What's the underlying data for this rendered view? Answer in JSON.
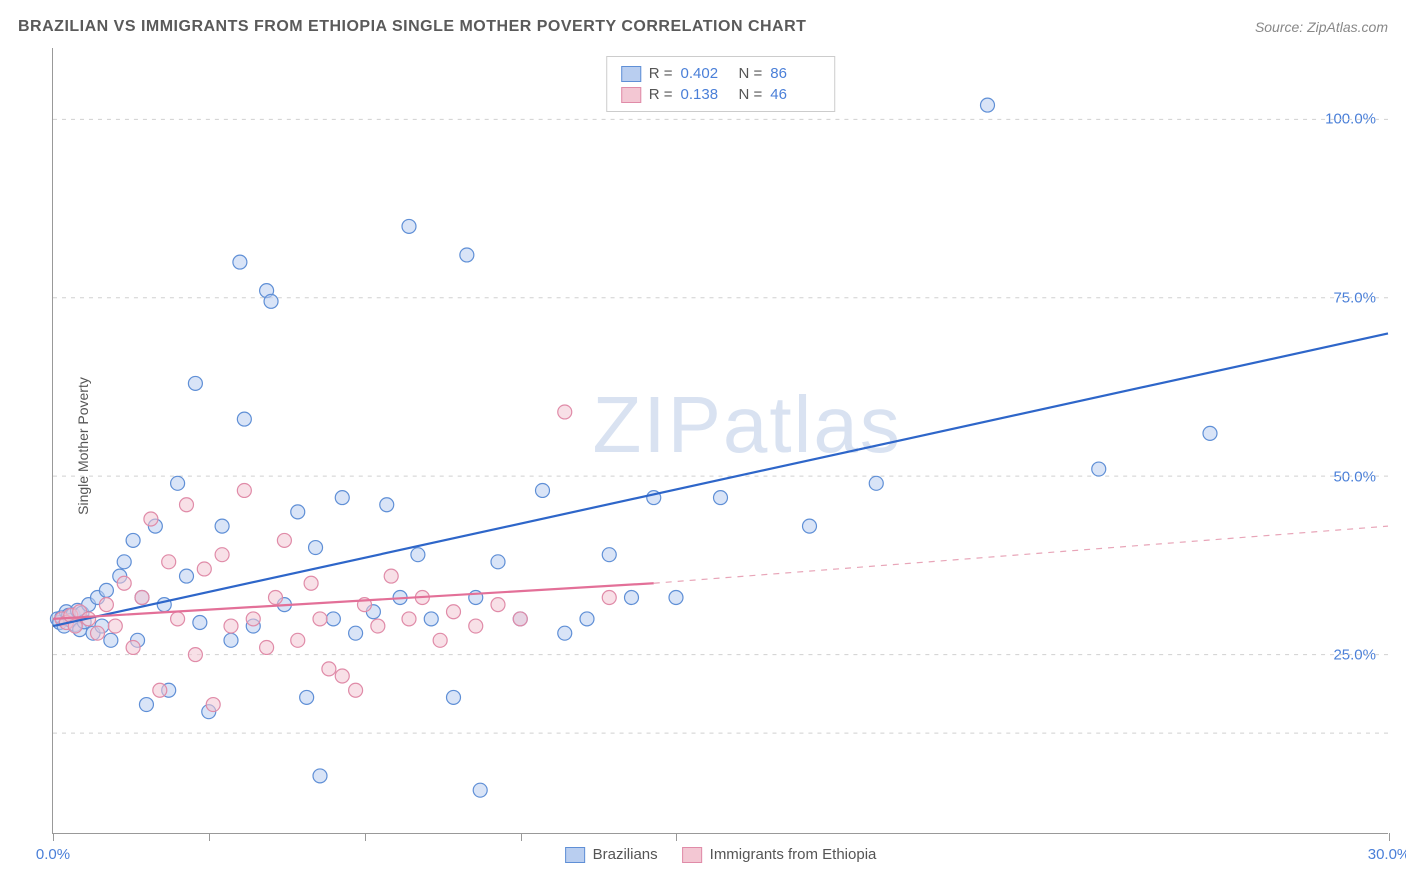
{
  "title": "BRAZILIAN VS IMMIGRANTS FROM ETHIOPIA SINGLE MOTHER POVERTY CORRELATION CHART",
  "source": "Source: ZipAtlas.com",
  "y_axis_label": "Single Mother Poverty",
  "watermark_bold": "ZIP",
  "watermark_light": "atlas",
  "chart": {
    "type": "scatter",
    "xlim": [
      0,
      30
    ],
    "ylim": [
      0,
      110
    ],
    "x_ticks": [
      0,
      3.5,
      7,
      10.5,
      14,
      30
    ],
    "x_tick_labels": {
      "0": "0.0%",
      "30": "30.0%"
    },
    "y_gridlines": [
      14,
      25,
      50,
      75,
      100
    ],
    "y_tick_labels": {
      "25": "25.0%",
      "50": "50.0%",
      "75": "75.0%",
      "100": "100.0%"
    },
    "background_color": "#ffffff",
    "grid_color": "#d0d0d0",
    "axis_color": "#999999",
    "tick_label_color": "#4a7fd8",
    "marker_radius": 7,
    "marker_stroke_width": 1.2,
    "series": [
      {
        "name": "Brazilians",
        "color_fill": "#b9cef0",
        "color_stroke": "#5f8fd6",
        "fill_opacity": 0.55,
        "R": "0.402",
        "N": "86",
        "trend_line": {
          "x1": 0,
          "y1": 29,
          "x2": 30,
          "y2": 70,
          "color": "#2e66c9",
          "width": 2.2,
          "dash": "none"
        },
        "points": [
          [
            0.1,
            30
          ],
          [
            0.15,
            29.5
          ],
          [
            0.2,
            30.2
          ],
          [
            0.25,
            29
          ],
          [
            0.3,
            31
          ],
          [
            0.35,
            30.5
          ],
          [
            0.4,
            29.8
          ],
          [
            0.45,
            30.6
          ],
          [
            0.5,
            29.2
          ],
          [
            0.55,
            31.2
          ],
          [
            0.6,
            28.5
          ],
          [
            0.65,
            30.8
          ],
          [
            0.7,
            29.6
          ],
          [
            0.8,
            32
          ],
          [
            0.9,
            28
          ],
          [
            1.0,
            33
          ],
          [
            1.1,
            29
          ],
          [
            1.2,
            34
          ],
          [
            1.3,
            27
          ],
          [
            1.5,
            36
          ],
          [
            1.6,
            38
          ],
          [
            1.8,
            41
          ],
          [
            1.9,
            27
          ],
          [
            2.0,
            33
          ],
          [
            2.1,
            18
          ],
          [
            2.3,
            43
          ],
          [
            2.5,
            32
          ],
          [
            2.6,
            20
          ],
          [
            2.8,
            49
          ],
          [
            3.0,
            36
          ],
          [
            3.2,
            63
          ],
          [
            3.3,
            29.5
          ],
          [
            3.5,
            17
          ],
          [
            3.8,
            43
          ],
          [
            4.0,
            27
          ],
          [
            4.2,
            80
          ],
          [
            4.3,
            58
          ],
          [
            4.5,
            29
          ],
          [
            4.8,
            76
          ],
          [
            4.9,
            74.5
          ],
          [
            5.2,
            32
          ],
          [
            5.5,
            45
          ],
          [
            5.7,
            19
          ],
          [
            5.9,
            40
          ],
          [
            6.0,
            8
          ],
          [
            6.3,
            30
          ],
          [
            6.5,
            47
          ],
          [
            6.8,
            28
          ],
          [
            7.2,
            31
          ],
          [
            7.5,
            46
          ],
          [
            7.8,
            33
          ],
          [
            8.0,
            85
          ],
          [
            8.2,
            39
          ],
          [
            8.5,
            30
          ],
          [
            9.0,
            19
          ],
          [
            9.3,
            81
          ],
          [
            9.5,
            33
          ],
          [
            9.6,
            6
          ],
          [
            10.0,
            38
          ],
          [
            10.5,
            30
          ],
          [
            11.0,
            48
          ],
          [
            11.5,
            28
          ],
          [
            12.0,
            30
          ],
          [
            12.5,
            39
          ],
          [
            13.0,
            33
          ],
          [
            13.5,
            47
          ],
          [
            14.0,
            33
          ],
          [
            15.0,
            47
          ],
          [
            17.0,
            43
          ],
          [
            18.5,
            49
          ],
          [
            21.0,
            102
          ],
          [
            23.5,
            51
          ],
          [
            26.0,
            56
          ]
        ]
      },
      {
        "name": "Immigrants from Ethiopia",
        "color_fill": "#f3c7d3",
        "color_stroke": "#e08ba8",
        "fill_opacity": 0.55,
        "R": "0.138",
        "N": "46",
        "trend_line_solid": {
          "x1": 0,
          "y1": 30,
          "x2": 13.5,
          "y2": 35,
          "color": "#e37098",
          "width": 2.2
        },
        "trend_line_dashed": {
          "x1": 13.5,
          "y1": 35,
          "x2": 30,
          "y2": 43,
          "color": "#e8a5b8",
          "width": 1.2,
          "dash": "6,6"
        },
        "points": [
          [
            0.2,
            30
          ],
          [
            0.3,
            29.5
          ],
          [
            0.4,
            30.5
          ],
          [
            0.5,
            29
          ],
          [
            0.6,
            31
          ],
          [
            0.8,
            30
          ],
          [
            1.0,
            28
          ],
          [
            1.2,
            32
          ],
          [
            1.4,
            29
          ],
          [
            1.6,
            35
          ],
          [
            1.8,
            26
          ],
          [
            2.0,
            33
          ],
          [
            2.2,
            44
          ],
          [
            2.4,
            20
          ],
          [
            2.6,
            38
          ],
          [
            2.8,
            30
          ],
          [
            3.0,
            46
          ],
          [
            3.2,
            25
          ],
          [
            3.4,
            37
          ],
          [
            3.6,
            18
          ],
          [
            3.8,
            39
          ],
          [
            4.0,
            29
          ],
          [
            4.3,
            48
          ],
          [
            4.5,
            30
          ],
          [
            4.8,
            26
          ],
          [
            5.0,
            33
          ],
          [
            5.2,
            41
          ],
          [
            5.5,
            27
          ],
          [
            5.8,
            35
          ],
          [
            6.0,
            30
          ],
          [
            6.2,
            23
          ],
          [
            6.5,
            22
          ],
          [
            6.8,
            20
          ],
          [
            7.0,
            32
          ],
          [
            7.3,
            29
          ],
          [
            7.6,
            36
          ],
          [
            8.0,
            30
          ],
          [
            8.3,
            33
          ],
          [
            8.7,
            27
          ],
          [
            9.0,
            31
          ],
          [
            9.5,
            29
          ],
          [
            10.0,
            32
          ],
          [
            10.5,
            30
          ],
          [
            11.5,
            59
          ],
          [
            12.5,
            33
          ]
        ]
      }
    ]
  },
  "legend_top": [
    {
      "swatch_fill": "#b9cef0",
      "swatch_stroke": "#5f8fd6",
      "r_label": "R =",
      "r_val": "0.402",
      "n_label": "N =",
      "n_val": "86"
    },
    {
      "swatch_fill": "#f3c7d3",
      "swatch_stroke": "#e08ba8",
      "r_label": "R =",
      "r_val": "0.138",
      "n_label": "N =",
      "n_val": "46"
    }
  ],
  "legend_bottom": [
    {
      "swatch_fill": "#b9cef0",
      "swatch_stroke": "#5f8fd6",
      "label": "Brazilians"
    },
    {
      "swatch_fill": "#f3c7d3",
      "swatch_stroke": "#e08ba8",
      "label": "Immigrants from Ethiopia"
    }
  ]
}
